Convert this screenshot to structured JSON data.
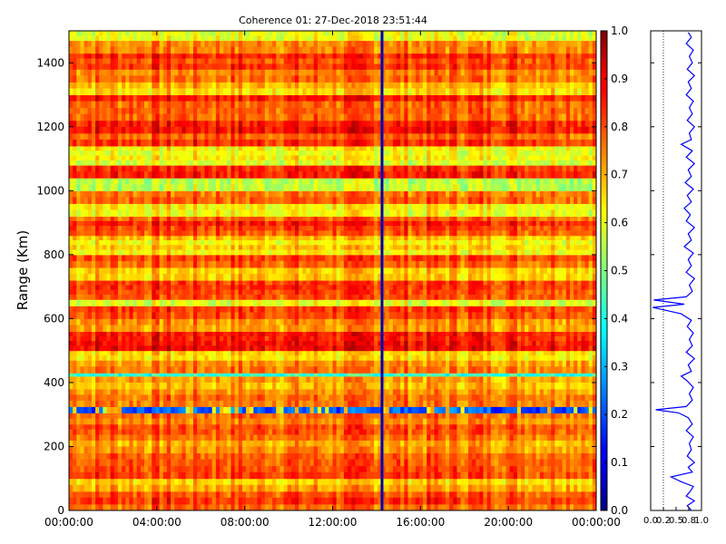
{
  "chart_data": [
    {
      "type": "heatmap",
      "title": "Coherence 01: 27-Dec-2018 23:51:44",
      "xlabel": "",
      "ylabel": "Range (Km)",
      "xlim": [
        "00:00:00",
        "24:00:00"
      ],
      "ylim": [
        0,
        1500
      ],
      "x_ticks": [
        "00:00:00",
        "04:00:00",
        "08:00:00",
        "12:00:00",
        "16:00:00",
        "20:00:00",
        "00:00:00"
      ],
      "y_ticks": [
        0,
        200,
        400,
        600,
        800,
        1000,
        1200,
        1400
      ],
      "colormap": "jet",
      "color_range": [
        0.0,
        1.0
      ],
      "colorbar_ticks": [
        0.0,
        0.1,
        0.2,
        0.3,
        0.4,
        0.5,
        0.6,
        0.7,
        0.8,
        0.9,
        1.0
      ],
      "grid": false,
      "row_bands": [
        {
          "range_km": [
            0,
            20
          ],
          "value": 0.78
        },
        {
          "range_km": [
            20,
            60
          ],
          "value": 0.8
        },
        {
          "range_km": [
            60,
            100
          ],
          "value": 0.7
        },
        {
          "range_km": [
            100,
            140
          ],
          "value": 0.82
        },
        {
          "range_km": [
            140,
            180
          ],
          "value": 0.76
        },
        {
          "range_km": [
            180,
            220
          ],
          "value": 0.72
        },
        {
          "range_km": [
            220,
            270
          ],
          "value": 0.8
        },
        {
          "range_km": [
            270,
            305
          ],
          "value": 0.74
        },
        {
          "range_km": [
            305,
            325
          ],
          "value": 0.2
        },
        {
          "range_km": [
            325,
            380
          ],
          "value": 0.76
        },
        {
          "range_km": [
            380,
            420
          ],
          "value": 0.72
        },
        {
          "range_km": [
            420,
            430
          ],
          "value": 0.45
        },
        {
          "range_km": [
            430,
            470
          ],
          "value": 0.78
        },
        {
          "range_km": [
            470,
            500
          ],
          "value": 0.66
        },
        {
          "range_km": [
            500,
            560
          ],
          "value": 0.86
        },
        {
          "range_km": [
            560,
            600
          ],
          "value": 0.74
        },
        {
          "range_km": [
            600,
            640
          ],
          "value": 0.8
        },
        {
          "range_km": [
            640,
            660
          ],
          "value": 0.62
        },
        {
          "range_km": [
            660,
            720
          ],
          "value": 0.84
        },
        {
          "range_km": [
            720,
            760
          ],
          "value": 0.66
        },
        {
          "range_km": [
            760,
            800
          ],
          "value": 0.8
        },
        {
          "range_km": [
            800,
            860
          ],
          "value": 0.66
        },
        {
          "range_km": [
            860,
            920
          ],
          "value": 0.82
        },
        {
          "range_km": [
            920,
            960
          ],
          "value": 0.62
        },
        {
          "range_km": [
            960,
            1000
          ],
          "value": 0.78
        },
        {
          "range_km": [
            1000,
            1040
          ],
          "value": 0.6
        },
        {
          "range_km": [
            1040,
            1080
          ],
          "value": 0.84
        },
        {
          "range_km": [
            1080,
            1140
          ],
          "value": 0.64
        },
        {
          "range_km": [
            1140,
            1180
          ],
          "value": 0.8
        },
        {
          "range_km": [
            1180,
            1220
          ],
          "value": 0.86
        },
        {
          "range_km": [
            1220,
            1260
          ],
          "value": 0.76
        },
        {
          "range_km": [
            1260,
            1300
          ],
          "value": 0.82
        },
        {
          "range_km": [
            1300,
            1340
          ],
          "value": 0.7
        },
        {
          "range_km": [
            1340,
            1380
          ],
          "value": 0.78
        },
        {
          "range_km": [
            1380,
            1430
          ],
          "value": 0.84
        },
        {
          "range_km": [
            1430,
            1470
          ],
          "value": 0.76
        },
        {
          "range_km": [
            1470,
            1500
          ],
          "value": 0.64
        }
      ],
      "vertical_line_time": "14:15:00",
      "vertical_line_value": 0.05
    },
    {
      "type": "line",
      "series_color": "#0000ff",
      "xlim": [
        0.0,
        1.0
      ],
      "ylim": [
        0,
        1500
      ],
      "x_ticks": [
        "0.0",
        "0.2",
        "0.5",
        "0.8",
        "1.0"
      ],
      "x_tick_values": [
        0.0,
        0.25,
        0.5,
        0.75,
        1.0
      ],
      "reference_line_x": 0.25,
      "profile_points": [
        [
          0.8,
          0
        ],
        [
          0.72,
          15
        ],
        [
          0.86,
          30
        ],
        [
          0.7,
          45
        ],
        [
          0.78,
          60
        ],
        [
          0.84,
          75
        ],
        [
          0.6,
          90
        ],
        [
          0.4,
          105
        ],
        [
          0.82,
          120
        ],
        [
          0.74,
          135
        ],
        [
          0.86,
          150
        ],
        [
          0.72,
          170
        ],
        [
          0.8,
          190
        ],
        [
          0.76,
          210
        ],
        [
          0.84,
          230
        ],
        [
          0.7,
          250
        ],
        [
          0.82,
          270
        ],
        [
          0.74,
          290
        ],
        [
          0.55,
          305
        ],
        [
          0.1,
          315
        ],
        [
          0.7,
          325
        ],
        [
          0.82,
          345
        ],
        [
          0.76,
          365
        ],
        [
          0.84,
          385
        ],
        [
          0.72,
          405
        ],
        [
          0.6,
          420
        ],
        [
          0.8,
          435
        ],
        [
          0.74,
          455
        ],
        [
          0.86,
          475
        ],
        [
          0.7,
          495
        ],
        [
          0.82,
          515
        ],
        [
          0.76,
          535
        ],
        [
          0.84,
          555
        ],
        [
          0.72,
          575
        ],
        [
          0.8,
          595
        ],
        [
          0.6,
          615
        ],
        [
          0.04,
          635
        ],
        [
          0.66,
          645
        ],
        [
          0.06,
          658
        ],
        [
          0.7,
          668
        ],
        [
          0.82,
          685
        ],
        [
          0.76,
          705
        ],
        [
          0.86,
          725
        ],
        [
          0.7,
          745
        ],
        [
          0.8,
          765
        ],
        [
          0.74,
          785
        ],
        [
          0.84,
          805
        ],
        [
          0.66,
          825
        ],
        [
          0.8,
          845
        ],
        [
          0.74,
          865
        ],
        [
          0.86,
          885
        ],
        [
          0.7,
          905
        ],
        [
          0.78,
          925
        ],
        [
          0.66,
          945
        ],
        [
          0.8,
          965
        ],
        [
          0.72,
          985
        ],
        [
          0.84,
          1005
        ],
        [
          0.68,
          1025
        ],
        [
          0.8,
          1045
        ],
        [
          0.74,
          1065
        ],
        [
          0.86,
          1085
        ],
        [
          0.7,
          1105
        ],
        [
          0.82,
          1125
        ],
        [
          0.6,
          1145
        ],
        [
          0.8,
          1160
        ],
        [
          0.76,
          1180
        ],
        [
          0.86,
          1200
        ],
        [
          0.72,
          1220
        ],
        [
          0.82,
          1240
        ],
        [
          0.76,
          1260
        ],
        [
          0.84,
          1280
        ],
        [
          0.7,
          1300
        ],
        [
          0.8,
          1320
        ],
        [
          0.74,
          1340
        ],
        [
          0.86,
          1360
        ],
        [
          0.72,
          1380
        ],
        [
          0.82,
          1400
        ],
        [
          0.76,
          1420
        ],
        [
          0.84,
          1440
        ],
        [
          0.7,
          1460
        ],
        [
          0.8,
          1480
        ],
        [
          0.74,
          1495
        ]
      ]
    }
  ]
}
